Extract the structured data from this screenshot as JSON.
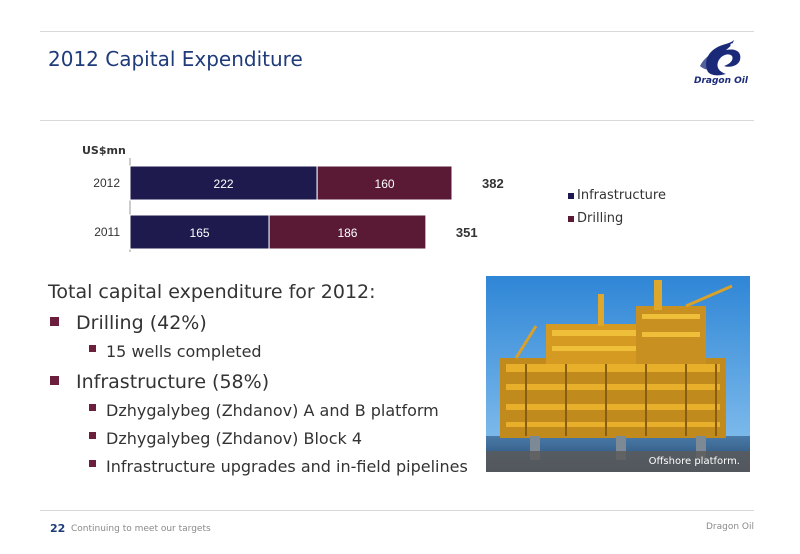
{
  "title": "2012 Capital Expenditure",
  "logo": {
    "text": "Dragon Oil"
  },
  "chart_data": {
    "type": "bar",
    "orientation": "horizontal",
    "stacked": true,
    "unit_label": "US$mn",
    "categories": [
      "2012",
      "2011"
    ],
    "series": [
      {
        "name": "Infrastructure",
        "values": [
          222,
          165
        ],
        "color": "#1e1a4d"
      },
      {
        "name": "Drilling",
        "values": [
          160,
          186
        ],
        "color": "#5a1a35"
      }
    ],
    "totals": [
      382,
      351
    ],
    "xlim": [
      0,
      382
    ],
    "legend_position": "right",
    "grid": false
  },
  "bullets": {
    "intro": "Total capital expenditure for 2012:",
    "drilling": {
      "label": "Drilling (42%)",
      "items": [
        "15 wells completed"
      ]
    },
    "infrastructure": {
      "label": "Infrastructure (58%)",
      "items": [
        "Dzhygalybeg (Zhdanov) A and B platform",
        "Dzhygalybeg (Zhdanov) Block 4",
        "Infrastructure upgrades and in-field pipelines"
      ]
    }
  },
  "photo": {
    "caption": "Offshore platform."
  },
  "footer": {
    "page_number": "22",
    "text": "Continuing to meet our targets",
    "right_text": "Dragon Oil"
  }
}
